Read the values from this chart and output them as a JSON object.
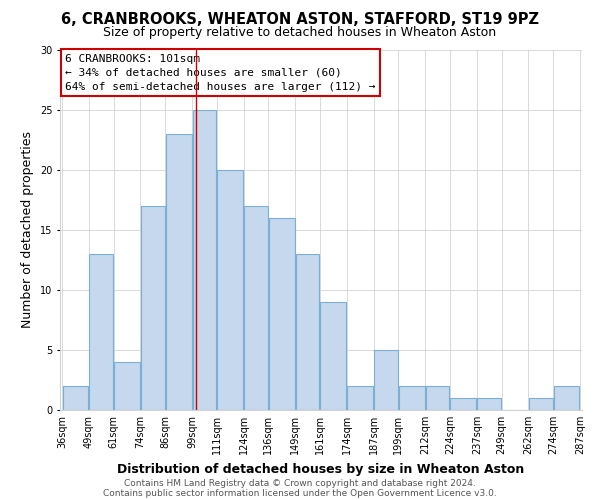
{
  "title": "6, CRANBROOKS, WHEATON ASTON, STAFFORD, ST19 9PZ",
  "subtitle": "Size of property relative to detached houses in Wheaton Aston",
  "xlabel": "Distribution of detached houses by size in Wheaton Aston",
  "ylabel": "Number of detached properties",
  "bin_edges": [
    36,
    49,
    61,
    74,
    86,
    99,
    111,
    124,
    136,
    149,
    161,
    174,
    187,
    199,
    212,
    224,
    237,
    249,
    262,
    274,
    287
  ],
  "counts": [
    2,
    13,
    4,
    17,
    23,
    25,
    20,
    17,
    16,
    13,
    9,
    2,
    5,
    2,
    2,
    1,
    1,
    0,
    1,
    2
  ],
  "bar_color": "#c5d8ed",
  "bar_edge_color": "#7bafd4",
  "vline_x": 101,
  "vline_color": "#cc0000",
  "annotation_box_edge_color": "#cc0000",
  "annotation_lines": [
    "6 CRANBROOKS: 101sqm",
    "← 34% of detached houses are smaller (60)",
    "64% of semi-detached houses are larger (112) →"
  ],
  "tick_labels": [
    "36sqm",
    "49sqm",
    "61sqm",
    "74sqm",
    "86sqm",
    "99sqm",
    "111sqm",
    "124sqm",
    "136sqm",
    "149sqm",
    "161sqm",
    "174sqm",
    "187sqm",
    "199sqm",
    "212sqm",
    "224sqm",
    "237sqm",
    "249sqm",
    "262sqm",
    "274sqm",
    "287sqm"
  ],
  "ylim": [
    0,
    30
  ],
  "yticks": [
    0,
    5,
    10,
    15,
    20,
    25,
    30
  ],
  "footer_lines": [
    "Contains HM Land Registry data © Crown copyright and database right 2024.",
    "Contains public sector information licensed under the Open Government Licence v3.0."
  ],
  "title_fontsize": 10.5,
  "subtitle_fontsize": 9,
  "axis_label_fontsize": 9,
  "tick_fontsize": 7,
  "annotation_fontsize": 8,
  "footer_fontsize": 6.5,
  "bg_color": "#ffffff"
}
